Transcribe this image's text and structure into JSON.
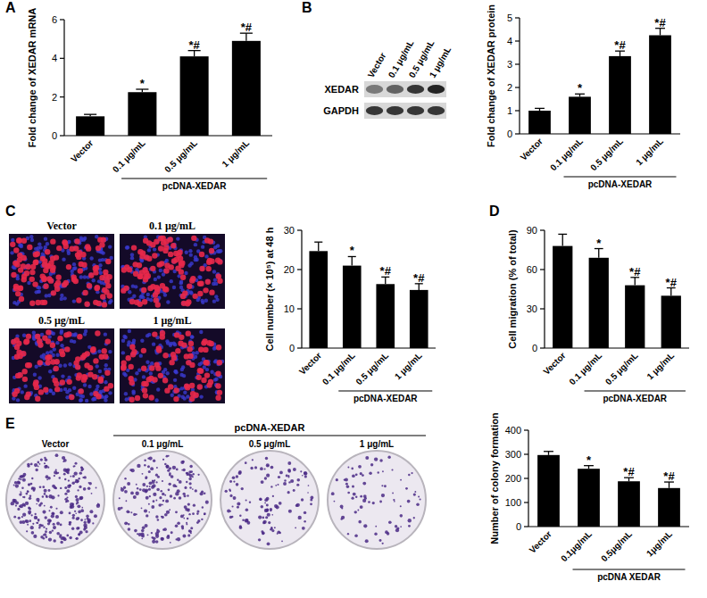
{
  "panel_labels": [
    "A",
    "B",
    "C",
    "D",
    "E"
  ],
  "blot": {
    "lanes": [
      "Vector",
      "0.1 μg/mL",
      "0.5 μg/mL",
      "1 μg/mL"
    ],
    "bands": [
      "XEDAR",
      "GAPDH"
    ]
  },
  "fluorescence": {
    "labels": [
      "Vector",
      "0.1 μg/mL",
      "0.5 μg/mL",
      "1 μg/mL"
    ]
  },
  "colonies": {
    "group_label": "pcDNA-XEDAR",
    "labels": [
      "Vector",
      "0.1 μg/mL",
      "0.5 μg/mL",
      "1 μg/mL"
    ]
  },
  "chart_data": [
    {
      "type": "bar",
      "y_label": "Fold change of XEDAR mRNA",
      "categories": [
        "Vector",
        "0.1 μg/mL",
        "0.5 μg/mL",
        "1 μg/mL"
      ],
      "group_label": "pcDNA-XEDAR",
      "values": [
        1.0,
        2.25,
        4.1,
        4.9
      ],
      "errors": [
        0.1,
        0.15,
        0.3,
        0.4
      ],
      "annotations": [
        null,
        "*",
        "*#",
        "*#"
      ],
      "color": "#000000",
      "ylim": [
        0,
        6
      ],
      "yticks": [
        0,
        2,
        4,
        6
      ]
    },
    {
      "type": "bar",
      "y_label": "Fold change of XEDAR protein",
      "categories": [
        "Vector",
        "0.1 μg/mL",
        "0.5 μg/mL",
        "1 μg/mL"
      ],
      "group_label": "pcDNA-XEDAR",
      "values": [
        1.0,
        1.6,
        3.35,
        4.25
      ],
      "errors": [
        0.1,
        0.12,
        0.22,
        0.3
      ],
      "annotations": [
        null,
        "*",
        "*#",
        "*#"
      ],
      "color": "#000000",
      "ylim": [
        0,
        5
      ],
      "yticks": [
        0,
        1,
        2,
        3,
        4,
        5
      ]
    },
    {
      "type": "bar",
      "y_label": "Cell number (× 10⁵) at 48 h",
      "categories": [
        "Vector",
        "0.1 μg/mL",
        "0.5 μg/mL",
        "1 μg/mL"
      ],
      "group_label": "pcDNA-XEDAR",
      "values": [
        24.7,
        21.0,
        16.3,
        14.8
      ],
      "errors": [
        2.3,
        2.3,
        1.8,
        1.6
      ],
      "annotations": [
        null,
        "*",
        "*#",
        "*#"
      ],
      "color": "#000000",
      "ylim": [
        0,
        30
      ],
      "yticks": [
        0,
        10,
        20,
        30
      ]
    },
    {
      "type": "bar",
      "y_label": "Cell migration (% of total)",
      "categories": [
        "Vector",
        "0.1 μg/mL",
        "0.5 μg/mL",
        "1 μg/mL"
      ],
      "group_label": "pcDNA-XEDAR",
      "values": [
        78,
        69,
        48,
        40
      ],
      "errors": [
        9,
        7,
        6,
        6
      ],
      "annotations": [
        null,
        "*",
        "*#",
        "*#"
      ],
      "color": "#000000",
      "ylim": [
        0,
        90
      ],
      "yticks": [
        0,
        30,
        60,
        90
      ]
    },
    {
      "type": "bar",
      "y_label": "Number of colony formation",
      "categories": [
        "Vector",
        "0.1μg/mL",
        "0.5μg/mL",
        "1μg/mL"
      ],
      "group_label": "pcDNA XEDAR",
      "values": [
        297,
        240,
        188,
        160
      ],
      "errors": [
        15,
        13,
        15,
        25
      ],
      "annotations": [
        null,
        "*",
        "*#",
        "*#"
      ],
      "color": "#000000",
      "ylim": [
        0,
        400
      ],
      "yticks": [
        0,
        100,
        200,
        300,
        400
      ]
    }
  ]
}
